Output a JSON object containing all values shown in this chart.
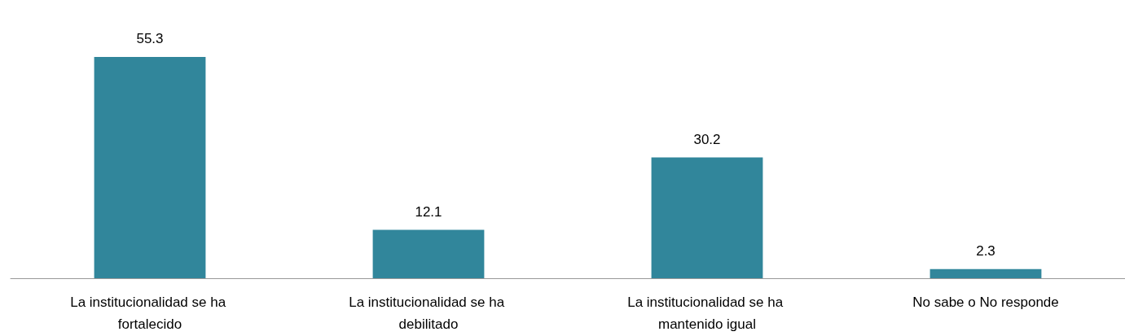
{
  "chart_data": {
    "type": "bar",
    "categories": [
      "La institucionalidad se ha fortalecido",
      "La institucionalidad se ha debilitado",
      "La institucionalidad se ha mantenido igual",
      "No sabe o No responde"
    ],
    "values": [
      55.3,
      12.1,
      30.2,
      2.3
    ],
    "color": "#31869b",
    "data_labels": true
  }
}
